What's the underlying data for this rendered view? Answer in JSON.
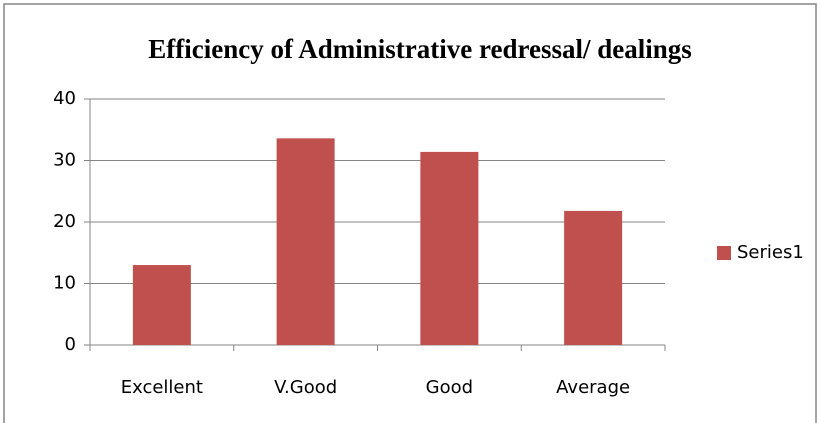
{
  "chart_data": {
    "type": "bar",
    "title": "Efficiency of Administrative redressal/ dealings",
    "categories": [
      "Excellent",
      "V.Good",
      "Good",
      "Average"
    ],
    "series": [
      {
        "name": "Series1",
        "color": "#c0504d",
        "values": [
          13,
          33.6,
          31.4,
          21.8
        ]
      }
    ],
    "ylim": [
      0,
      40
    ],
    "yticks": [
      0,
      10,
      20,
      30,
      40
    ],
    "grid": true,
    "legend": "right"
  }
}
